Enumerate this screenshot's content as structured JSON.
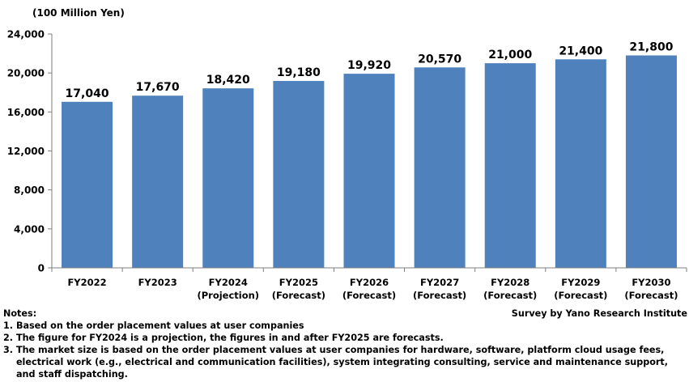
{
  "unit_label": "(100 Million Yen)",
  "chart_data": {
    "type": "bar",
    "categories": [
      [
        "FY2022"
      ],
      [
        "FY2023"
      ],
      [
        "FY2024",
        "(Projection)"
      ],
      [
        "FY2025",
        "(Forecast)"
      ],
      [
        "FY2026",
        "(Forecast)"
      ],
      [
        "FY2027",
        "(Forecast)"
      ],
      [
        "FY2028",
        "(Forecast)"
      ],
      [
        "FY2029",
        "(Forecast)"
      ],
      [
        "FY2030",
        "(Forecast)"
      ]
    ],
    "values": [
      17040,
      17670,
      18420,
      19180,
      19920,
      20570,
      21000,
      21400,
      21800
    ],
    "value_labels": [
      "17,040",
      "17,670",
      "18,420",
      "19,180",
      "19,920",
      "20,570",
      "21,000",
      "21,400",
      "21,800"
    ],
    "yticks": [
      "0",
      "4,000",
      "8,000",
      "12,000",
      "16,000",
      "20,000",
      "24,000"
    ],
    "ylim": [
      0,
      24000
    ],
    "bar_color": "#4f81bd",
    "grid": false,
    "title": "",
    "xlabel": "",
    "ylabel": "(100 Million Yen)"
  },
  "notes": {
    "heading": "Notes:",
    "source": "Survey by Yano Research Institute",
    "items": [
      {
        "num": "1. ",
        "text": "Based on the order placement values at user companies"
      },
      {
        "num": "2. ",
        "text": "The figure for FY2024 is a projection, the figures in and after FY2025 are forecasts."
      },
      {
        "num": "3. ",
        "text": "The market size is based on the order placement values at user companies for hardware, software, platform cloud usage fees, electrical work (e.g., electrical and communication facilities), system integrating consulting, service and maintenance support, and staff dispatching."
      }
    ]
  }
}
